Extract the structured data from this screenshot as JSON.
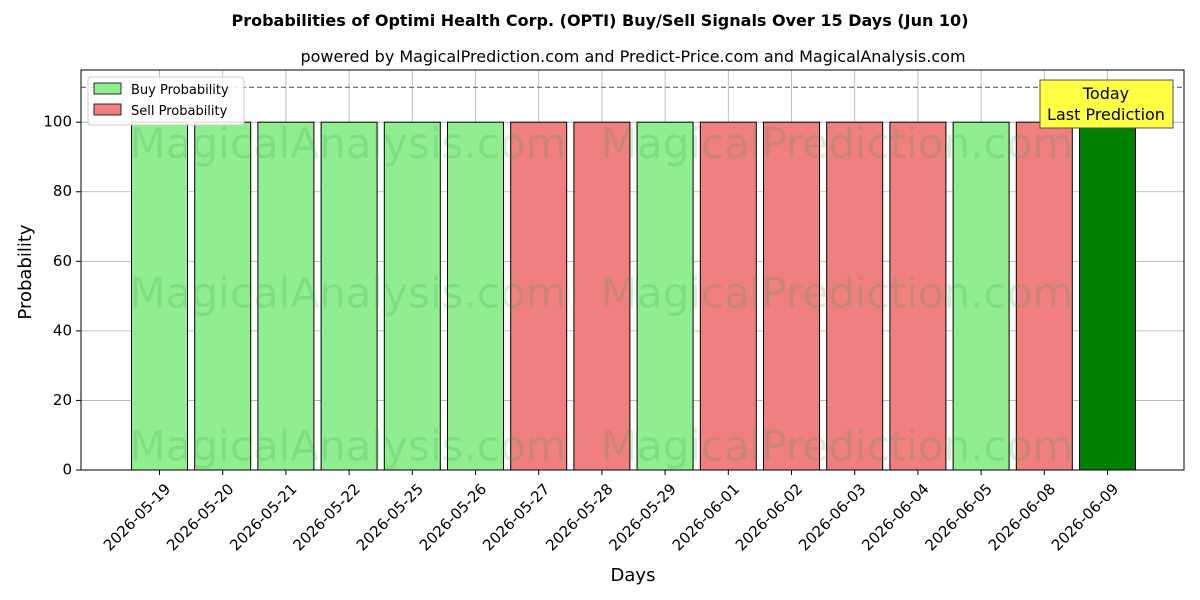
{
  "chart_data": {
    "type": "bar",
    "title": "Probabilities of Optimi Health Corp. (OPTI) Buy/Sell Signals Over 15 Days (Jun 10)",
    "subtitle": "powered by MagicalPrediction.com and Predict-Price.com and MagicalAnalysis.com",
    "xlabel": "Days",
    "ylabel": "Probability",
    "ylim": [
      0,
      115
    ],
    "yticks": [
      0,
      20,
      40,
      60,
      80,
      100
    ],
    "grid": true,
    "legend_placement": "top-left",
    "categories": [
      "2026-05-19",
      "2026-05-20",
      "2026-05-21",
      "2026-05-22",
      "2026-05-25",
      "2026-05-26",
      "2026-05-27",
      "2026-05-28",
      "2026-05-29",
      "2026-06-01",
      "2026-06-02",
      "2026-06-03",
      "2026-06-04",
      "2026-06-05",
      "2026-06-08",
      "2026-06-09"
    ],
    "values": [
      100,
      100,
      100,
      100,
      100,
      100,
      100,
      100,
      100,
      100,
      100,
      100,
      100,
      100,
      100,
      100
    ],
    "signals": [
      "buy",
      "buy",
      "buy",
      "buy",
      "buy",
      "buy",
      "sell",
      "sell",
      "buy",
      "sell",
      "sell",
      "sell",
      "sell",
      "buy",
      "sell",
      "today"
    ],
    "legend": [
      {
        "name": "Buy Probability",
        "color": "#90ee90"
      },
      {
        "name": "Sell Probability",
        "color": "#f08080"
      }
    ],
    "colors": {
      "buy": "#90ee90",
      "sell": "#f08080",
      "today": "#008000",
      "annotation_bg": "#ffff44"
    },
    "reference_line": 110,
    "annotation": {
      "line1": "Today",
      "line2": "Last Prediction"
    },
    "watermarks": [
      "MagicalAnalysis.com",
      "MagicalPrediction.com"
    ]
  }
}
